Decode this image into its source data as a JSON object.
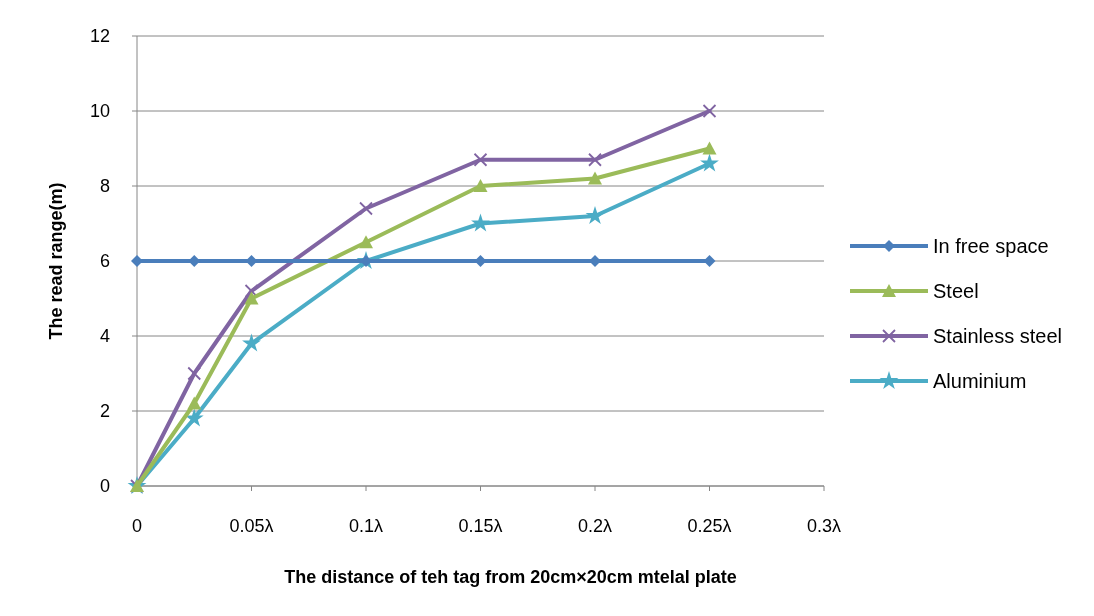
{
  "chart_data": {
    "type": "line",
    "xlabel": "The distance of teh tag from 20cm×20cm mtelal plate",
    "ylabel": "The read range(m)",
    "x": [
      0,
      0.025,
      0.05,
      0.1,
      0.15,
      0.2,
      0.25
    ],
    "series": [
      {
        "name": "In free space",
        "color": "#4a7ebb",
        "marker": "diamond",
        "values": [
          6,
          6,
          6,
          6,
          6,
          6,
          6
        ]
      },
      {
        "name": "Steel",
        "color": "#9bbb59",
        "marker": "triangle",
        "values": [
          0,
          2.2,
          5,
          6.5,
          8,
          8.2,
          9
        ]
      },
      {
        "name": "Stainless steel",
        "color": "#8064a2",
        "marker": "cross",
        "values": [
          0,
          3,
          5.2,
          7.4,
          8.7,
          8.7,
          10
        ]
      },
      {
        "name": "Aluminium",
        "color": "#4bacc6",
        "marker": "star",
        "values": [
          0,
          1.8,
          3.8,
          6,
          7,
          7.2,
          8.6
        ]
      }
    ],
    "xlim": [
      0,
      0.3
    ],
    "xticks": [
      0,
      {
        "value": 0.05,
        "label": "0.05λ"
      },
      {
        "value": 0.1,
        "label": "0.1λ"
      },
      {
        "value": 0.15,
        "label": "0.15λ"
      },
      {
        "value": 0.2,
        "label": "0.2λ"
      },
      {
        "value": 0.25,
        "label": "0.25λ"
      },
      {
        "value": 0.3,
        "label": "0.3λ"
      }
    ],
    "ylim": [
      0,
      12
    ],
    "yticks": [
      0,
      2,
      4,
      6,
      8,
      10,
      12
    ],
    "grid": "y",
    "legend": "right"
  }
}
